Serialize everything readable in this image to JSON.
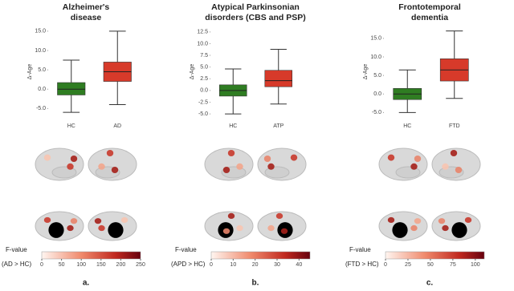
{
  "chart_data": [
    {
      "type": "box",
      "title": [
        "Alzheimer's",
        "disease"
      ],
      "y_label": "Δ-Age",
      "categories": [
        "HC",
        "AD"
      ],
      "boxes": [
        {
          "color": "#2f7d22",
          "whisker_low": -6,
          "q1": -1.5,
          "median": 0,
          "q3": 1.7,
          "whisker_high": 7.5
        },
        {
          "color": "#d73a2a",
          "whisker_low": -4,
          "q1": 2,
          "median": 4.5,
          "q3": 7,
          "whisker_high": 15
        }
      ],
      "ylim": [
        -7,
        16
      ],
      "yticks": [
        {
          "value": -5,
          "label": "-5.0"
        },
        {
          "value": 0,
          "label": "0.0"
        },
        {
          "value": 5,
          "label": "5.0"
        },
        {
          "value": 10,
          "label": "10.0"
        },
        {
          "value": 15,
          "label": "15.0"
        }
      ],
      "colorbar": {
        "label": [
          "F-value",
          "(AD > HC)"
        ],
        "lim": [
          0,
          250
        ],
        "ticks": [
          0,
          50,
          100,
          150,
          200,
          250
        ]
      },
      "panel_label": "a."
    },
    {
      "type": "box",
      "title": [
        "Atypical Parkinsonian",
        "disorders (CBS and PSP)"
      ],
      "y_label": "Δ-Age",
      "categories": [
        "HC",
        "ATP"
      ],
      "boxes": [
        {
          "color": "#2f7d22",
          "whisker_low": -5,
          "q1": -1.2,
          "median": 0,
          "q3": 1.2,
          "whisker_high": 4.6
        },
        {
          "color": "#d73a2a",
          "whisker_low": -2.9,
          "q1": 0.8,
          "median": 2.1,
          "q3": 4.3,
          "whisker_high": 8.8
        }
      ],
      "ylim": [
        -5.5,
        13.5
      ],
      "yticks": [
        {
          "value": -5,
          "label": "-5.0"
        },
        {
          "value": -2.5,
          "label": "-2.5"
        },
        {
          "value": 0,
          "label": "0.0"
        },
        {
          "value": 2.5,
          "label": "2.5"
        },
        {
          "value": 5,
          "label": "5.0"
        },
        {
          "value": 7.5,
          "label": "7.5"
        },
        {
          "value": 10,
          "label": "10.0"
        },
        {
          "value": 12.5,
          "label": "12.5"
        }
      ],
      "colorbar": {
        "label": [
          "F-value",
          "(APD > HC)"
        ],
        "lim": [
          0,
          45
        ],
        "ticks": [
          0,
          10,
          20,
          30,
          40
        ]
      },
      "panel_label": "b."
    },
    {
      "type": "box",
      "title": [
        "Frontotemporal",
        "dementia"
      ],
      "y_label": "Δ-Age",
      "categories": [
        "HC",
        "FTD"
      ],
      "boxes": [
        {
          "color": "#2f7d22",
          "whisker_low": -5,
          "q1": -1.5,
          "median": 0,
          "q3": 1.5,
          "whisker_high": 6.5
        },
        {
          "color": "#d73a2a",
          "whisker_low": -1.2,
          "q1": 3.5,
          "median": 6.5,
          "q3": 9.5,
          "whisker_high": 17
        }
      ],
      "ylim": [
        -6,
        18
      ],
      "yticks": [
        {
          "value": -5,
          "label": "-5.0"
        },
        {
          "value": 0,
          "label": "0.0"
        },
        {
          "value": 5,
          "label": "5.0"
        },
        {
          "value": 10,
          "label": "10.0"
        },
        {
          "value": 15,
          "label": "15.0"
        }
      ],
      "colorbar": {
        "label": [
          "F-value",
          "(FTD > HC)"
        ],
        "lim": [
          0,
          110
        ],
        "ticks": [
          0,
          25,
          50,
          75,
          100
        ]
      },
      "panel_label": "c."
    }
  ]
}
